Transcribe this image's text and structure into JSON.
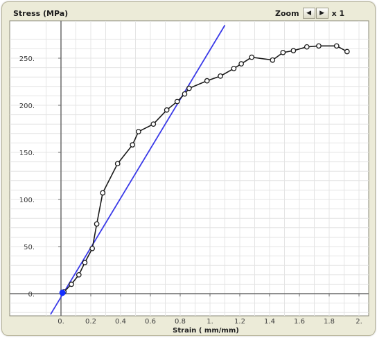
{
  "ylabel_title": "Stress (MPa)",
  "zoom": {
    "label": "Zoom",
    "left_icon": "left-arrow-icon",
    "right_icon": "right-arrow-icon",
    "level": "x 1"
  },
  "colors": {
    "panel": "#ecebd8",
    "grid": "#e4e4e4",
    "axis": "#6a6a6a",
    "curve": "#1a1a1a",
    "fitline": "#3a3ae8",
    "origin_point": "#1530ff"
  },
  "chart_data": {
    "type": "line",
    "title": "",
    "xlabel": "Strain ( mm/mm)",
    "ylabel": "Stress (MPa)",
    "xlim": [
      -0.15,
      2.05
    ],
    "ylim": [
      -22,
      268
    ],
    "xticks": [
      0.0,
      0.2,
      0.4,
      0.6,
      0.8,
      1.0,
      1.2,
      1.4,
      1.6,
      1.8,
      2.0
    ],
    "xtick_labels": [
      "0.",
      "0.2",
      "0.4",
      "0.6",
      "0.8",
      "1.",
      "1.2",
      "1.4",
      "1.6",
      "1.8",
      "2."
    ],
    "yticks": [
      0,
      50,
      100,
      150,
      200,
      250
    ],
    "ytick_labels": [
      "0.",
      "50.",
      "100.",
      "150.",
      "200.",
      "250."
    ],
    "grid": true,
    "series": [
      {
        "type": "line_markers",
        "x": [
          0.02,
          0.07,
          0.12,
          0.16,
          0.21,
          0.24,
          0.28,
          0.38,
          0.48,
          0.52,
          0.62,
          0.71,
          0.78,
          0.83,
          0.86,
          0.98,
          1.07,
          1.16,
          1.21,
          1.28,
          1.42,
          1.49,
          1.56,
          1.65,
          1.73,
          1.85,
          1.92
        ],
        "y": [
          2,
          10,
          20,
          33,
          48,
          74,
          107,
          138,
          158,
          172,
          180,
          195,
          204,
          212,
          218,
          226,
          231,
          239,
          244,
          251,
          248,
          256,
          258,
          262,
          263,
          263,
          257
        ]
      },
      {
        "type": "line",
        "x": [
          -0.07,
          1.1
        ],
        "y": [
          -22,
          285
        ]
      }
    ],
    "highlight_point": {
      "x": 0.01,
      "y": 1
    }
  }
}
